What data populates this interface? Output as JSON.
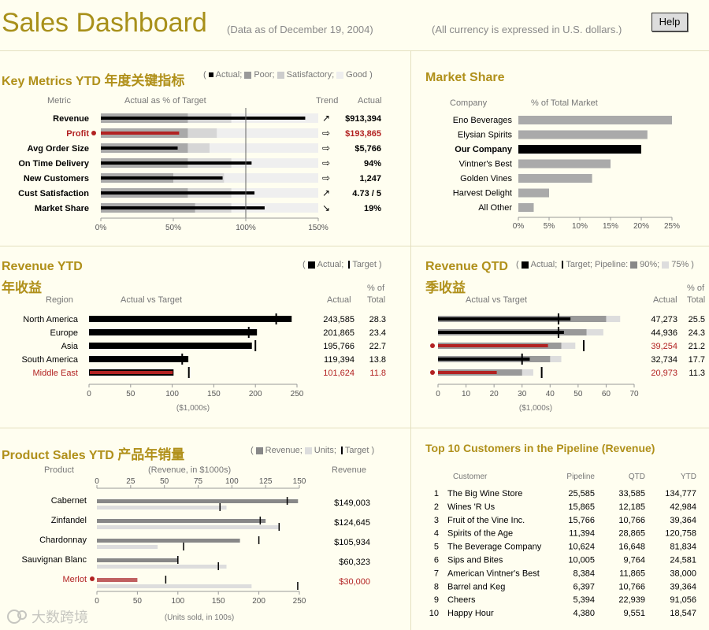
{
  "header": {
    "title": "Sales Dashboard",
    "as_of": "(Data as of December 19, 2004)",
    "currency_note": "(All currency is expressed in U.S. dollars.)",
    "help_label": "Help"
  },
  "colors": {
    "title": "#b0901a",
    "alert": "#b22222",
    "actual": "#000000"
  },
  "chart_data": [
    {
      "id": "key_metrics",
      "type": "bar",
      "title": "Key Metrics YTD",
      "title_cn": "年度关键指标",
      "legend": {
        "open": "(",
        "actual": "Actual;",
        "poor": "Poor;",
        "satisfactory": "Satisfactory;",
        "good": "Good",
        "close": ")"
      },
      "col_metric": "Metric",
      "col_actual_pct": "Actual as % of Target",
      "col_trend": "Trend",
      "col_actual": "Actual",
      "xlim": [
        0,
        150
      ],
      "ticks": [
        "0%",
        "50%",
        "100%",
        "150%"
      ],
      "target_pct": 100,
      "rows": [
        {
          "metric": "Revenue",
          "actual_pct": 141,
          "poor": 60,
          "satisfactory": 90,
          "trend": "↗",
          "actual": "$913,394",
          "alert": false
        },
        {
          "metric": "Profit",
          "actual_pct": 54,
          "poor": 60,
          "satisfactory": 80,
          "trend": "⇨",
          "actual": "$193,865",
          "alert": true
        },
        {
          "metric": "Avg Order Size",
          "actual_pct": 53,
          "poor": 60,
          "satisfactory": 75,
          "trend": "⇨",
          "actual": "$5,766",
          "alert": false
        },
        {
          "metric": "On Time Delivery",
          "actual_pct": 104,
          "poor": 60,
          "satisfactory": 90,
          "trend": "⇨",
          "actual": "94%",
          "alert": false
        },
        {
          "metric": "New Customers",
          "actual_pct": 84,
          "poor": 50,
          "satisfactory": 85,
          "trend": "⇨",
          "actual": "1,247",
          "alert": false
        },
        {
          "metric": "Cust Satisfaction",
          "actual_pct": 106,
          "poor": 60,
          "satisfactory": 90,
          "trend": "↗",
          "actual": "4.73 / 5",
          "alert": false
        },
        {
          "metric": "Market Share",
          "actual_pct": 113,
          "poor": 65,
          "satisfactory": 90,
          "trend": "↘",
          "actual": "19%",
          "alert": false
        }
      ]
    },
    {
      "id": "market_share",
      "type": "bar",
      "title": "Market Share",
      "col_company": "Company",
      "col_pct": "% of Total Market",
      "xlim": [
        0,
        25
      ],
      "ticks": [
        "0%",
        "5%",
        "10%",
        "15%",
        "20%",
        "25%"
      ],
      "rows": [
        {
          "company": "Eno Beverages",
          "value": 25,
          "highlight": false
        },
        {
          "company": "Elysian Spirits",
          "value": 21,
          "highlight": false
        },
        {
          "company": "Our Company",
          "value": 20,
          "highlight": true
        },
        {
          "company": "Vintner's Best",
          "value": 15,
          "highlight": false
        },
        {
          "company": "Golden Vines",
          "value": 12,
          "highlight": false
        },
        {
          "company": "Harvest Delight",
          "value": 5,
          "highlight": false
        },
        {
          "company": "All Other",
          "value": 2.5,
          "highlight": false
        }
      ]
    },
    {
      "id": "revenue_ytd",
      "type": "bar",
      "title": "Revenue YTD",
      "title_cn": "年收益",
      "legend": {
        "open": "(",
        "actual": "Actual;",
        "target": "Target",
        "close": ")"
      },
      "col_region": "Region",
      "col_avt": "Actual vs Target",
      "col_actual": "Actual",
      "col_pct_1": "% of",
      "col_pct_2": "Total",
      "xlim": [
        0,
        250
      ],
      "ticks": [
        "0",
        "50",
        "100",
        "150",
        "200",
        "250"
      ],
      "unit_label": "($1,000s)",
      "rows": [
        {
          "region": "North America",
          "actual": 243.585,
          "target": 225,
          "actual_label": "243,585",
          "pct": "28.3",
          "alert": false
        },
        {
          "region": "Europe",
          "actual": 201.865,
          "target": 192,
          "actual_label": "201,865",
          "pct": "23.4",
          "alert": false
        },
        {
          "region": "Asia",
          "actual": 195.766,
          "target": 200,
          "actual_label": "195,766",
          "pct": "22.7",
          "alert": false
        },
        {
          "region": "South America",
          "actual": 119.394,
          "target": 112,
          "actual_label": "119,394",
          "pct": "13.8",
          "alert": false
        },
        {
          "region": "Middle East",
          "actual": 101.624,
          "target": 120,
          "actual_label": "101,624",
          "pct": "11.8",
          "alert": true
        }
      ]
    },
    {
      "id": "revenue_qtd",
      "type": "bar",
      "title": "Revenue QTD",
      "title_cn": "季收益",
      "legend": {
        "open": "(",
        "actual": "Actual;",
        "target": "Target;",
        "pipeline": "Pipeline:",
        "p90": "90%;",
        "p75": "75%",
        "close": ")"
      },
      "col_region": "Region",
      "col_avt": "Actual vs Target",
      "col_actual": "Actual",
      "col_pct_1": "% of",
      "col_pct_2": "Total",
      "xlim": [
        0,
        70
      ],
      "ticks": [
        "0",
        "10",
        "20",
        "30",
        "40",
        "50",
        "60",
        "70"
      ],
      "unit_label": "($1,000s)",
      "rows": [
        {
          "actual": 47.273,
          "p90": 60,
          "p75": 65,
          "target": 43,
          "actual_label": "47,273",
          "pct": "25.5",
          "alert": false
        },
        {
          "actual": 44.936,
          "p90": 53,
          "p75": 59,
          "target": 43,
          "actual_label": "44,936",
          "pct": "24.3",
          "alert": false
        },
        {
          "actual": 39.254,
          "p90": 44,
          "p75": 49,
          "target": 52,
          "actual_label": "39,254",
          "pct": "21.2",
          "alert": true
        },
        {
          "actual": 32.734,
          "p90": 40,
          "p75": 44,
          "target": 30,
          "actual_label": "32,734",
          "pct": "17.7",
          "alert": false
        },
        {
          "actual": 20.973,
          "p90": 30,
          "p75": 34,
          "target": 37,
          "actual_label": "20,973",
          "pct": "11.3",
          "alert": true
        }
      ]
    },
    {
      "id": "product_sales",
      "type": "bar",
      "title": "Product Sales YTD",
      "title_cn": "产品年销量",
      "legend": {
        "open": "(",
        "revenue": "Revenue;",
        "units": "Units;",
        "target": "Target",
        "close": ")"
      },
      "col_product": "Product",
      "col_rev_axis": "(Revenue, in $1000s)",
      "col_revenue": "Revenue",
      "top_xlim": [
        0,
        150
      ],
      "top_ticks": [
        "0",
        "25",
        "50",
        "75",
        "100",
        "125",
        "150"
      ],
      "bottom_xlim": [
        0,
        250
      ],
      "bottom_ticks": [
        "0",
        "50",
        "100",
        "150",
        "200",
        "250"
      ],
      "bottom_label": "(Units sold, in 100s)",
      "rows": [
        {
          "product": "Cabernet",
          "revenue": 149,
          "rev_target": 141,
          "units": 160,
          "units_target": 152,
          "revenue_label": "$149,003",
          "alert": false
        },
        {
          "product": "Zinfandel",
          "revenue": 125,
          "rev_target": 121,
          "units": 225,
          "units_target": 225,
          "revenue_label": "$124,645",
          "alert": false
        },
        {
          "product": "Chardonnay",
          "revenue": 106,
          "rev_target": 120,
          "units": 75,
          "units_target": 107,
          "revenue_label": "$105,934",
          "alert": false
        },
        {
          "product": "Sauvignan Blanc",
          "revenue": 60,
          "rev_target": 60,
          "units": 160,
          "units_target": 150,
          "revenue_label": "$60,323",
          "alert": false
        },
        {
          "product": "Merlot",
          "revenue": 30,
          "rev_target": 51,
          "units": 191,
          "units_target": 248,
          "revenue_label": "$30,000",
          "alert": true
        }
      ]
    },
    {
      "id": "top_customers",
      "type": "table",
      "title": "Top 10 Customers in the Pipeline (Revenue)",
      "columns": [
        "Customer",
        "Pipeline",
        "QTD",
        "YTD"
      ],
      "rows": [
        {
          "rank": "1",
          "customer": "The Big Wine Store",
          "pipeline": "25,585",
          "qtd": "33,585",
          "ytd": "134,777"
        },
        {
          "rank": "2",
          "customer": "Wines 'R Us",
          "pipeline": "15,865",
          "qtd": "12,185",
          "ytd": "42,984"
        },
        {
          "rank": "3",
          "customer": "Fruit of the Vine Inc.",
          "pipeline": "15,766",
          "qtd": "10,766",
          "ytd": "39,364"
        },
        {
          "rank": "4",
          "customer": "Spirits of the Age",
          "pipeline": "11,394",
          "qtd": "28,865",
          "ytd": "120,758"
        },
        {
          "rank": "5",
          "customer": "The Beverage Company",
          "pipeline": "10,624",
          "qtd": "16,648",
          "ytd": "81,834"
        },
        {
          "rank": "6",
          "customer": "Sips and Bites",
          "pipeline": "10,005",
          "qtd": "9,764",
          "ytd": "24,581"
        },
        {
          "rank": "7",
          "customer": "American Vintner's Best",
          "pipeline": "8,384",
          "qtd": "11,865",
          "ytd": "38,000"
        },
        {
          "rank": "8",
          "customer": "Barrel and Keg",
          "pipeline": "6,397",
          "qtd": "10,766",
          "ytd": "39,364"
        },
        {
          "rank": "9",
          "customer": "Cheers",
          "pipeline": "5,394",
          "qtd": "22,939",
          "ytd": "91,056"
        },
        {
          "rank": "10",
          "customer": "Happy Hour",
          "pipeline": "4,380",
          "qtd": "9,551",
          "ytd": "18,547"
        }
      ]
    }
  ],
  "watermark": {
    "text": "大数跨境"
  }
}
